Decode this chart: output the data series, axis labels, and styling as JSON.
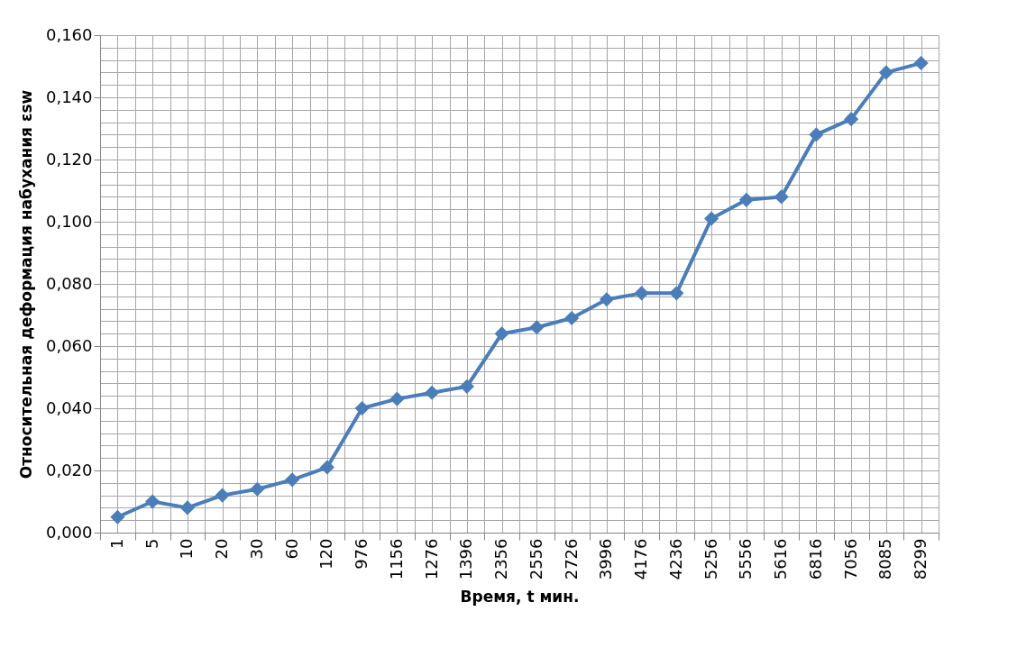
{
  "chart_data": {
    "type": "line",
    "xlabel": "Время, t мин.",
    "ylabel": "Относительная деформация набухания εsw",
    "categories": [
      "1",
      "5",
      "10",
      "20",
      "30",
      "60",
      "120",
      "976",
      "1156",
      "1276",
      "1396",
      "2356",
      "2556",
      "2726",
      "3996",
      "4176",
      "4236",
      "5256",
      "5556",
      "5616",
      "6816",
      "7056",
      "8085",
      "8299"
    ],
    "series": [
      {
        "color": "#4a7ebb",
        "values": [
          0.005,
          0.01,
          0.008,
          0.012,
          0.014,
          0.017,
          0.021,
          0.04,
          0.043,
          0.045,
          0.047,
          0.064,
          0.066,
          0.069,
          0.075,
          0.077,
          0.077,
          0.101,
          0.107,
          0.108,
          0.128,
          0.133,
          0.148,
          0.151
        ]
      }
    ],
    "ylim": [
      0,
      0.16
    ],
    "yticks": [
      {
        "value": 0,
        "label": "0,000"
      },
      {
        "value": 0.02,
        "label": "0,020"
      },
      {
        "value": 0.04,
        "label": "0,040"
      },
      {
        "value": 0.06,
        "label": "0,060"
      },
      {
        "value": 0.08,
        "label": "0,080"
      },
      {
        "value": 0.1,
        "label": "0,100"
      },
      {
        "value": 0.12,
        "label": "0,120"
      },
      {
        "value": 0.14,
        "label": "0,140"
      },
      {
        "value": 0.16,
        "label": "0,160"
      }
    ],
    "grid": true,
    "marker": "diamond",
    "line_style": "solid",
    "legend": false
  }
}
